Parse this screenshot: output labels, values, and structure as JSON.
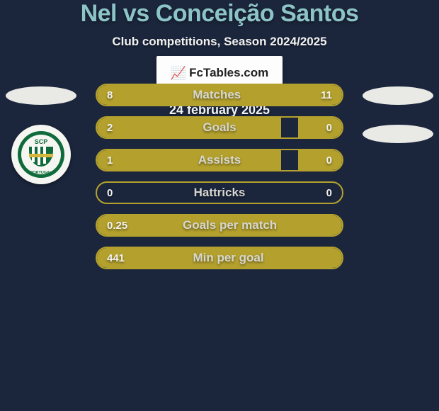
{
  "colors": {
    "background": "#1b263d",
    "bar_track": "#1b263d",
    "accent": "#b4a12d",
    "title": "#8dc4c7",
    "text_light": "#f2f2f0",
    "metric_text": "#d7d7d0",
    "avatar_oval": "#e9e9e6",
    "brand_bg": "#fdfdfd"
  },
  "title": {
    "text": "Nel vs Conceição Santos",
    "fontsize": 34,
    "color": "#8dc4c7"
  },
  "subtitle": {
    "text": "Club competitions, Season 2024/2025",
    "fontsize": 17,
    "color": "#f2f2f0"
  },
  "left_badge": {
    "top_label": "SCP",
    "bottom_label": "PORTUGAL",
    "ring_color": "#0f6b3b",
    "stripe_colors": [
      "#0f6b3b",
      "#ffffff"
    ],
    "band_color": "#d6b63c"
  },
  "bars": {
    "label_fontsize": 17,
    "value_fontsize": 15,
    "value_color": "#f2f2f0",
    "metric_color": "#d7d7d0",
    "fill_color": "#b4a12d",
    "items": [
      {
        "left": "8",
        "metric": "Matches",
        "right": "11",
        "pct_l": 40,
        "pct_r": 60
      },
      {
        "left": "2",
        "metric": "Goals",
        "right": "0",
        "pct_l": 75,
        "pct_r": 18
      },
      {
        "left": "1",
        "metric": "Assists",
        "right": "0",
        "pct_l": 75,
        "pct_r": 18
      },
      {
        "left": "0",
        "metric": "Hattricks",
        "right": "0",
        "pct_l": 0,
        "pct_r": 0
      },
      {
        "left": "0.25",
        "metric": "Goals per match",
        "right": "",
        "pct_l": 100,
        "pct_r": 0
      },
      {
        "left": "441",
        "metric": "Min per goal",
        "right": "",
        "pct_l": 100,
        "pct_r": 0
      }
    ]
  },
  "branding": {
    "logo_glyph": "📈",
    "text": "FcTables.com"
  },
  "date": {
    "text": "24 february 2025",
    "fontsize": 18,
    "color": "#f2f2f0"
  }
}
